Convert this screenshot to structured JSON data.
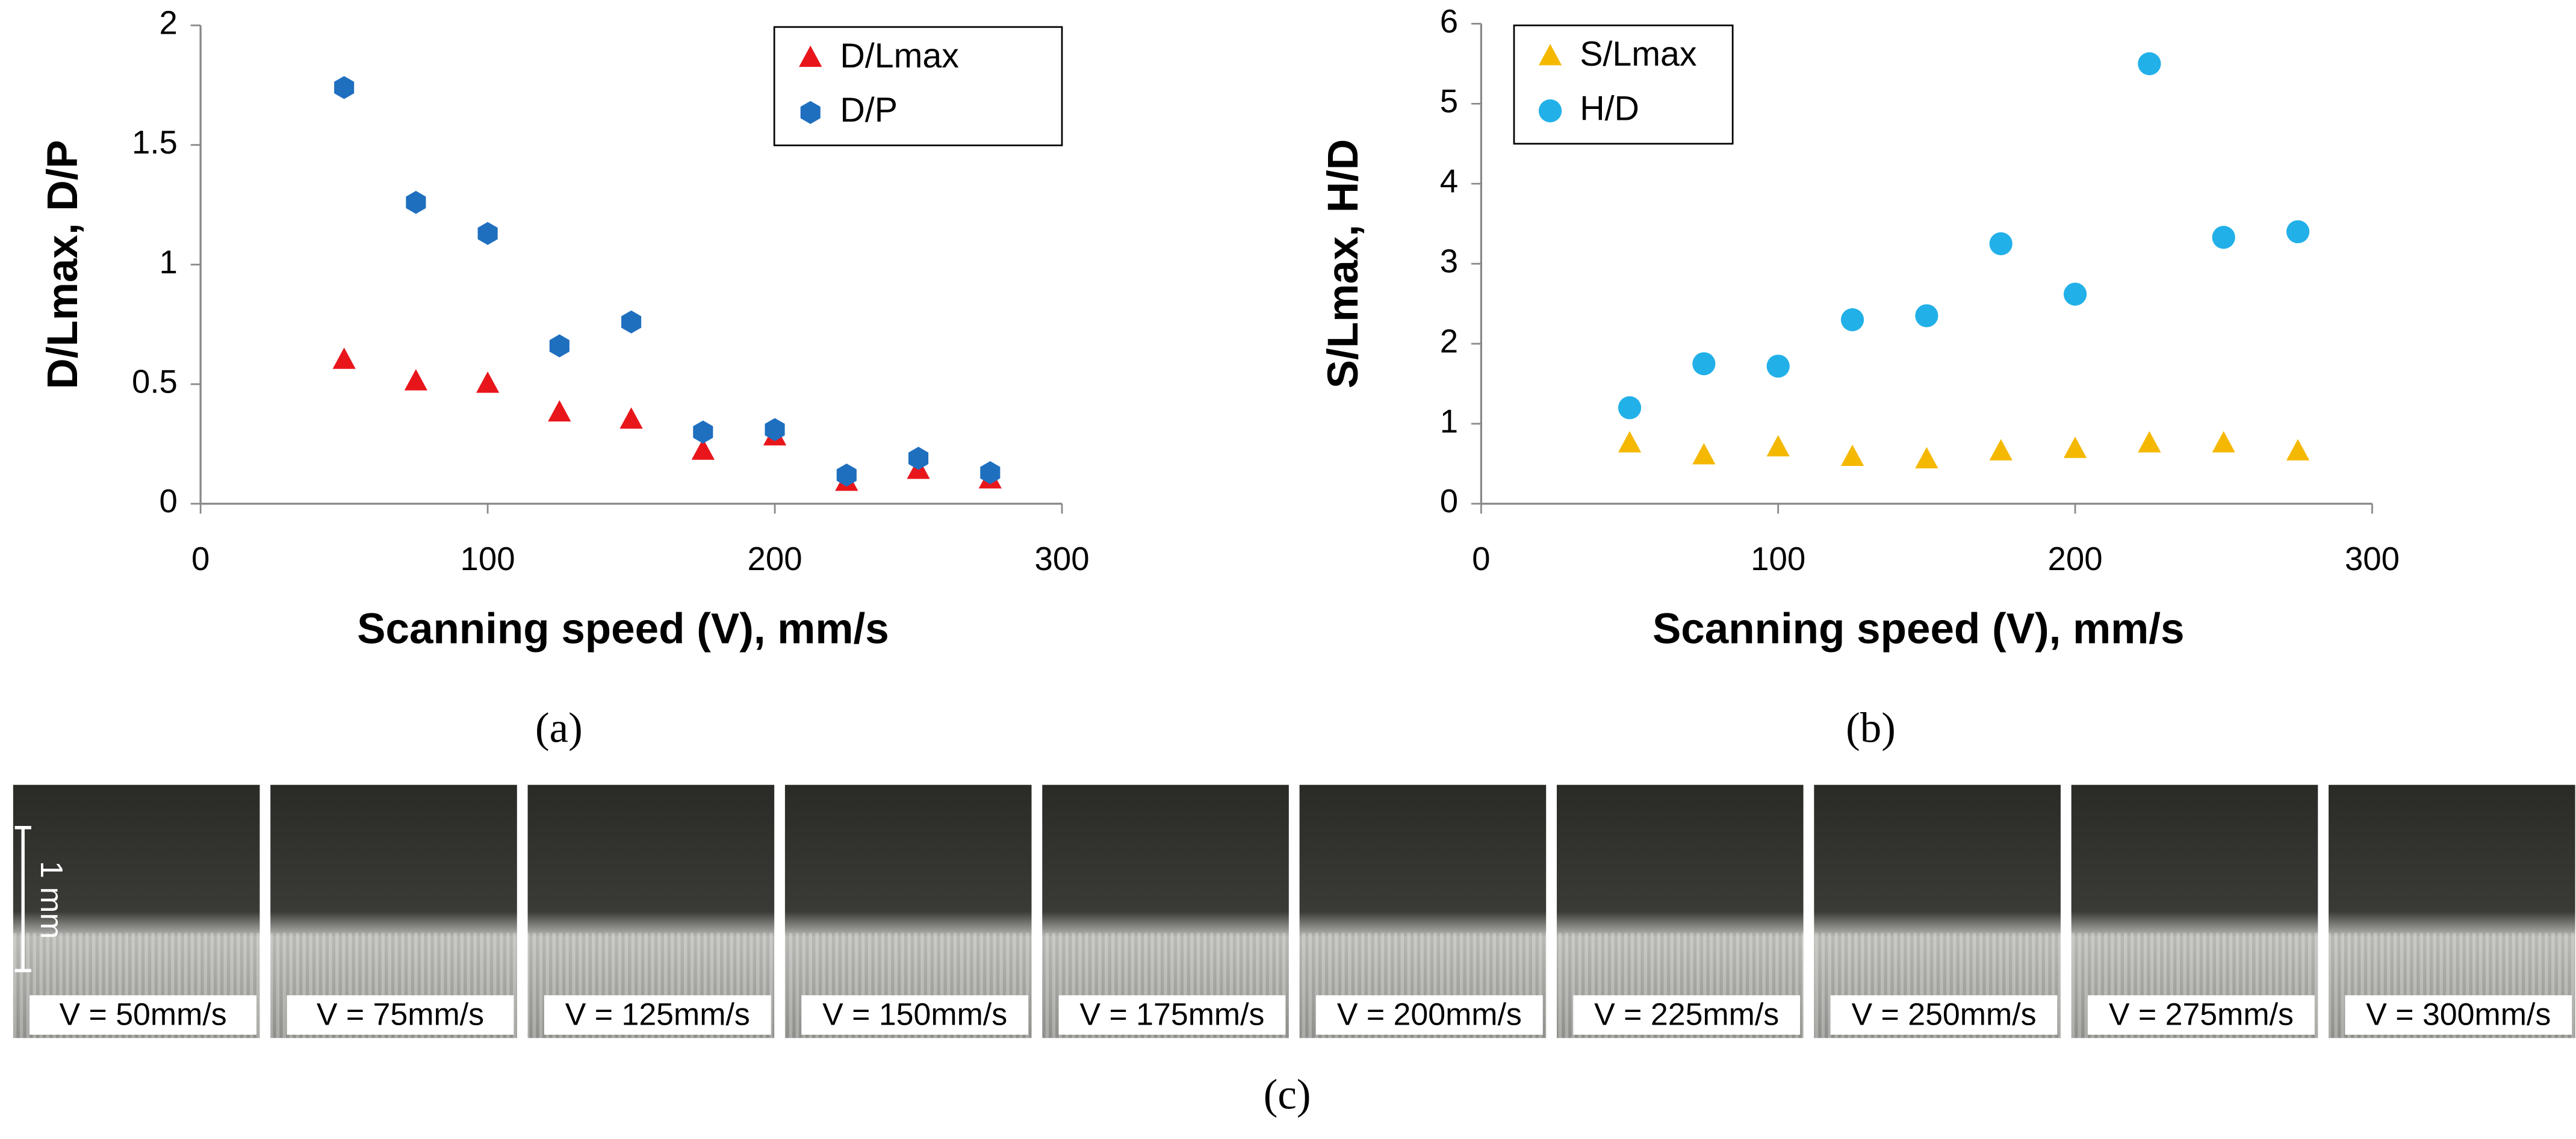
{
  "chart_data": [
    {
      "type": "scatter",
      "xlabel": "Scanning speed (V), mm/s",
      "ylabel": "D/Lmax, D/P",
      "x": [
        50,
        75,
        100,
        125,
        150,
        175,
        200,
        225,
        250,
        275
      ],
      "series": [
        {
          "name": "D/Lmax",
          "color": "#e8161b",
          "marker": "triangle",
          "values": [
            0.6,
            0.51,
            0.5,
            0.38,
            0.35,
            0.22,
            0.28,
            0.09,
            0.14,
            0.1
          ]
        },
        {
          "name": "D/P",
          "color": "#1f6fbf",
          "marker": "hexagon",
          "values": [
            1.74,
            1.26,
            1.13,
            0.66,
            0.76,
            0.3,
            0.31,
            0.12,
            0.19,
            0.13
          ]
        }
      ],
      "xlim": [
        0,
        300
      ],
      "xticks": [
        0,
        100,
        200,
        300
      ],
      "ylim": [
        0,
        2
      ],
      "yticks": [
        0,
        0.5,
        1,
        1.5,
        2
      ],
      "legend": "upper right"
    },
    {
      "type": "scatter",
      "xlabel": "Scanning speed (V), mm/s",
      "ylabel": "S/Lmax, H/D",
      "x": [
        50,
        75,
        100,
        125,
        150,
        175,
        200,
        225,
        250,
        275
      ],
      "series": [
        {
          "name": "S/Lmax",
          "color": "#f5b800",
          "marker": "triangle",
          "values": [
            0.75,
            0.6,
            0.7,
            0.58,
            0.55,
            0.65,
            0.68,
            0.75,
            0.75,
            0.65
          ]
        },
        {
          "name": "H/D",
          "color": "#22b0e8",
          "marker": "circle",
          "values": [
            1.2,
            1.75,
            1.72,
            2.3,
            2.35,
            3.25,
            2.62,
            5.5,
            3.33,
            3.4
          ]
        }
      ],
      "xlim": [
        0,
        300
      ],
      "xticks": [
        0,
        100,
        200,
        300
      ],
      "ylim": [
        0,
        6
      ],
      "yticks": [
        0,
        1,
        2,
        3,
        4,
        5,
        6
      ],
      "legend": "upper left"
    }
  ],
  "panel_labels": [
    "(a)",
    "(b)",
    "(c)"
  ],
  "photos": {
    "scale_label": "1 mm",
    "labels": [
      "V = 50mm/s",
      "V = 75mm/s",
      "V = 125mm/s",
      "V = 150mm/s",
      "V = 175mm/s",
      "V = 200mm/s",
      "V = 225mm/s",
      "V = 250mm/s",
      "V = 275mm/s",
      "V = 300mm/s"
    ]
  }
}
